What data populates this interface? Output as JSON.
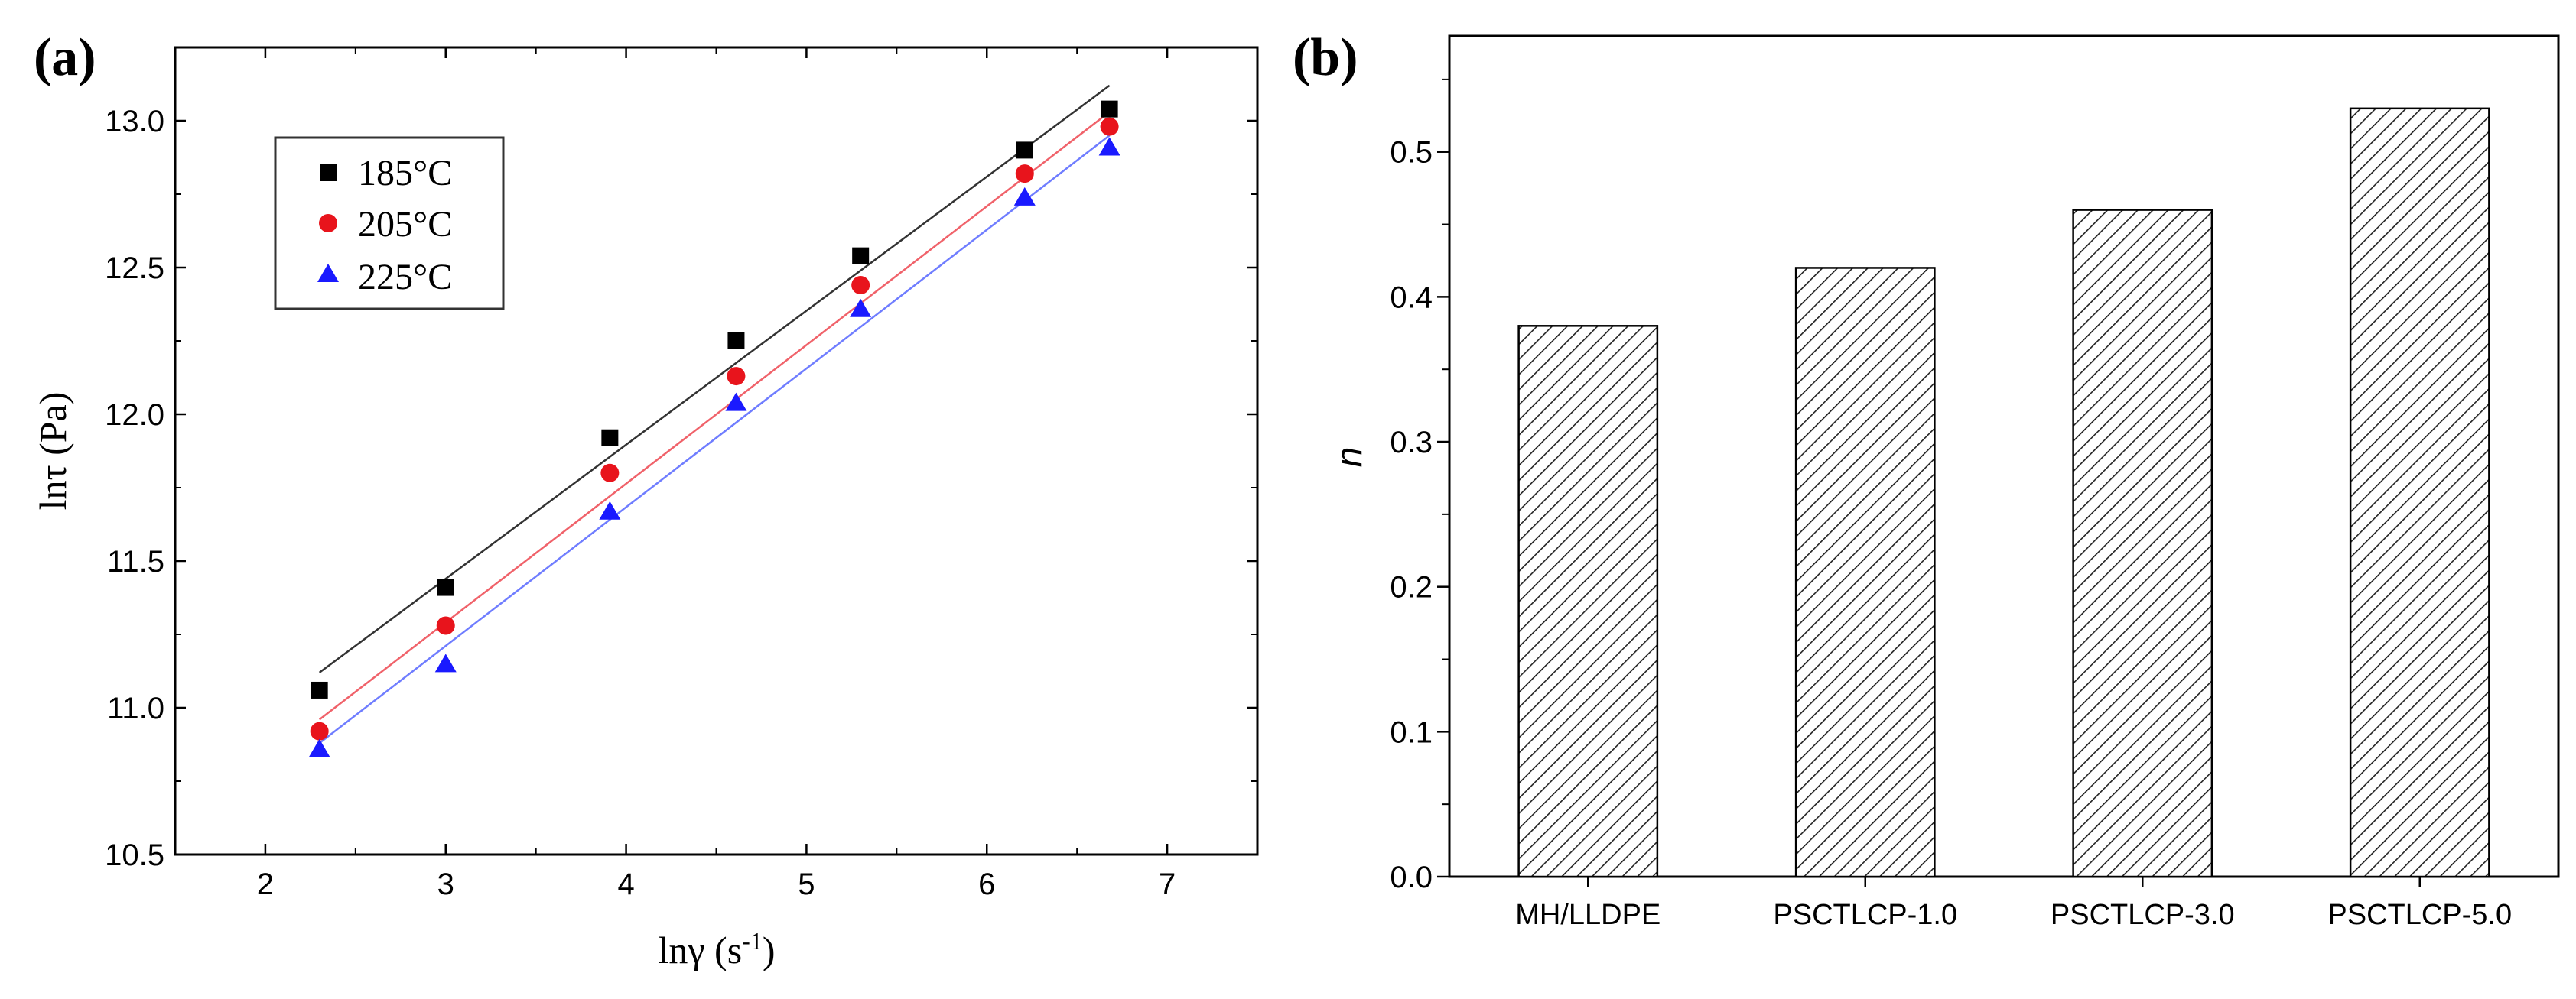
{
  "colors": {
    "black": "#000000",
    "red": "#e8141c",
    "blue": "#1a1aff",
    "fit_black": "#333333",
    "fit_red": "#f0626a",
    "fit_blue": "#6f7dff"
  },
  "chart_data": [
    {
      "type": "scatter",
      "panel_label": "(a)",
      "xlabel": "lnγ (s-1)",
      "ylabel": "lnτ (Pa)",
      "xlim": [
        1.5,
        7.5
      ],
      "ylim": [
        10.5,
        13.25
      ],
      "xticks": [
        2,
        3,
        4,
        5,
        6,
        7
      ],
      "yticks": [
        10.5,
        11.0,
        11.5,
        12.0,
        12.5,
        13.0
      ],
      "xtick_labels": [
        "2",
        "3",
        "4",
        "5",
        "6",
        "7"
      ],
      "ytick_labels": [
        "10.5",
        "11.0",
        "11.5",
        "12.0",
        "12.5",
        "13.0"
      ],
      "legend_position": "top-left",
      "series": [
        {
          "name": "185°C",
          "marker": "square",
          "color": "#000000",
          "x": [
            2.3,
            3.0,
            3.91,
            4.61,
            5.3,
            6.21,
            6.68
          ],
          "y": [
            11.06,
            11.41,
            11.92,
            12.25,
            12.54,
            12.9,
            13.04
          ],
          "fit": {
            "x": [
              2.3,
              6.68
            ],
            "y": [
              11.12,
              13.12
            ]
          }
        },
        {
          "name": "205°C",
          "marker": "circle",
          "color": "#e8141c",
          "x": [
            2.3,
            3.0,
            3.91,
            4.61,
            5.3,
            6.21,
            6.68
          ],
          "y": [
            10.92,
            11.28,
            11.8,
            12.13,
            12.44,
            12.82,
            12.98
          ],
          "fit": {
            "x": [
              2.3,
              6.68
            ],
            "y": [
              10.96,
              13.03
            ]
          }
        },
        {
          "name": "225°C",
          "marker": "triangle",
          "color": "#1a1aff",
          "x": [
            2.3,
            3.0,
            3.91,
            4.61,
            5.3,
            6.21,
            6.68
          ],
          "y": [
            10.86,
            11.15,
            11.67,
            12.04,
            12.36,
            12.74,
            12.91
          ],
          "fit": {
            "x": [
              2.3,
              6.68
            ],
            "y": [
              10.88,
              12.95
            ]
          }
        }
      ]
    },
    {
      "type": "bar",
      "panel_label": "(b)",
      "xlabel": "",
      "ylabel": "n",
      "ylim": [
        0.0,
        0.58
      ],
      "yticks": [
        0.0,
        0.1,
        0.2,
        0.3,
        0.4,
        0.5
      ],
      "ytick_labels": [
        "0.0",
        "0.1",
        "0.2",
        "0.3",
        "0.4",
        "0.5"
      ],
      "categories": [
        "MH/LLDPE",
        "PSCTLCP-1.0",
        "PSCTLCP-3.0",
        "PSCTLCP-5.0"
      ],
      "values": [
        0.38,
        0.42,
        0.46,
        0.53
      ],
      "fill": "diagonal-hatch"
    }
  ]
}
